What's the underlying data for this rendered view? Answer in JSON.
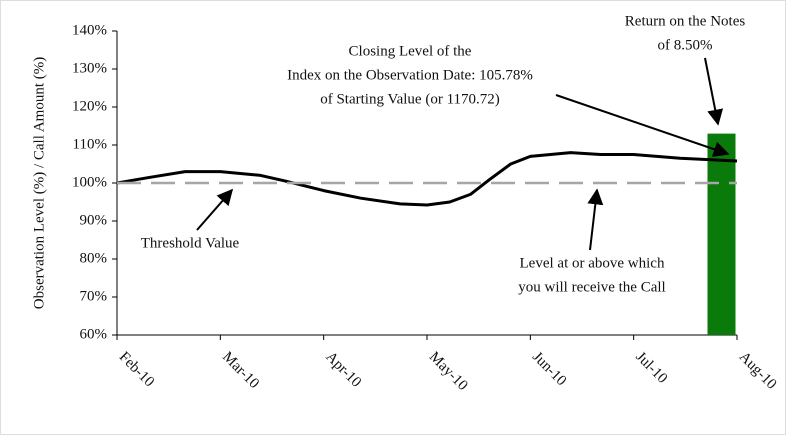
{
  "chart_data": {
    "type": "line",
    "y_label": "Observation Level (%) / Call Amount (%)",
    "ylim": [
      60,
      140
    ],
    "yticks": [
      {
        "value": 60,
        "label": "60%"
      },
      {
        "value": 70,
        "label": "70%"
      },
      {
        "value": 80,
        "label": "80%"
      },
      {
        "value": 90,
        "label": "90%"
      },
      {
        "value": 100,
        "label": "100%"
      },
      {
        "value": 110,
        "label": "110%"
      },
      {
        "value": 120,
        "label": "120%"
      },
      {
        "value": 130,
        "label": "130%"
      },
      {
        "value": 140,
        "label": "140%"
      }
    ],
    "xlim": [
      0,
      6
    ],
    "xticks": [
      {
        "value": 0,
        "label": "Feb-10"
      },
      {
        "value": 1,
        "label": "Mar-10"
      },
      {
        "value": 2,
        "label": "Apr-10"
      },
      {
        "value": 3,
        "label": "May-10"
      },
      {
        "value": 4,
        "label": "Jun-10"
      },
      {
        "value": 5,
        "label": "Jul-10"
      },
      {
        "value": 6,
        "label": "Aug-10"
      }
    ],
    "series": [
      {
        "color": "#000000",
        "x": [
          0,
          0.32,
          0.66,
          1,
          1.39,
          1.63,
          2,
          2.36,
          2.74,
          3,
          3.22,
          3.42,
          3.61,
          3.81,
          4,
          4.39,
          4.68,
          5,
          5.45,
          6
        ],
        "values": [
          100,
          101.5,
          103,
          103,
          102,
          100.5,
          98,
          96,
          94.5,
          94.2,
          95,
          97,
          101,
          105,
          107,
          108,
          107.5,
          107.5,
          106.5,
          105.8
        ]
      },
      {
        "color": "#a6a6a6",
        "dashed": true,
        "x": [
          0,
          6
        ],
        "values": [
          100,
          100
        ]
      }
    ],
    "bar": {
      "color": "#0a7a0a",
      "x": 5.85,
      "value": 113
    },
    "annotations": [
      {
        "lines": [
          "Closing Level of the",
          "Index on the Observation Date: 105.78%",
          "of Starting Value (or 1170.72)"
        ]
      },
      {
        "lines": [
          "Return on the Notes",
          "of 8.50%"
        ]
      },
      {
        "lines": [
          "Threshold Value"
        ]
      },
      {
        "lines": [
          "Level at or above which",
          "you will receive the Call"
        ]
      }
    ]
  }
}
